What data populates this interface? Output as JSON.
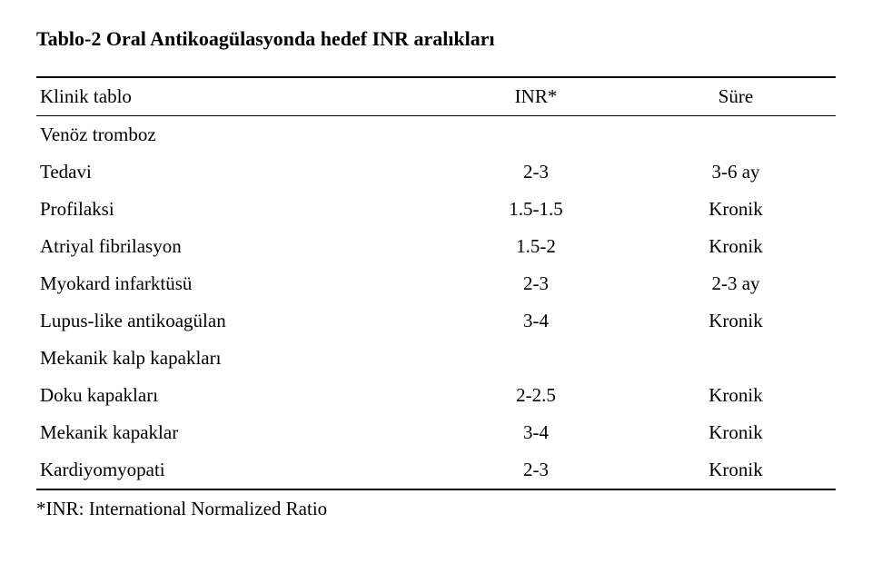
{
  "title": "Tablo-2 Oral Antikoagülasyonda hedef INR aralıkları",
  "headers": {
    "col1": "Klinik tablo",
    "col2": "INR*",
    "col3": "Süre"
  },
  "rows": [
    {
      "label": "Venöz tromboz",
      "inr": "",
      "sure": "",
      "indent": false
    },
    {
      "label": "Tedavi",
      "inr": "2-3",
      "sure": "3-6 ay",
      "indent": true
    },
    {
      "label": "Profilaksi",
      "inr": "1.5-1.5",
      "sure": "Kronik",
      "indent": true
    },
    {
      "label": "Atriyal fibrilasyon",
      "inr": "1.5-2",
      "sure": "Kronik",
      "indent": false
    },
    {
      "label": "Myokard infarktüsü",
      "inr": "2-3",
      "sure": "2-3 ay",
      "indent": false
    },
    {
      "label": "Lupus-like antikoagülan",
      "inr": "3-4",
      "sure": "Kronik",
      "indent": false
    },
    {
      "label": "Mekanik kalp kapakları",
      "inr": "",
      "sure": "",
      "indent": false
    },
    {
      "label": "Doku kapakları",
      "inr": "2-2.5",
      "sure": "Kronik",
      "indent": true
    },
    {
      "label": "Mekanik kapaklar",
      "inr": "3-4",
      "sure": "Kronik",
      "indent": true
    },
    {
      "label": "Kardiyomyopati",
      "inr": "2-3",
      "sure": "Kronik",
      "indent": false
    }
  ],
  "footnote": "*INR: International Normalized Ratio"
}
